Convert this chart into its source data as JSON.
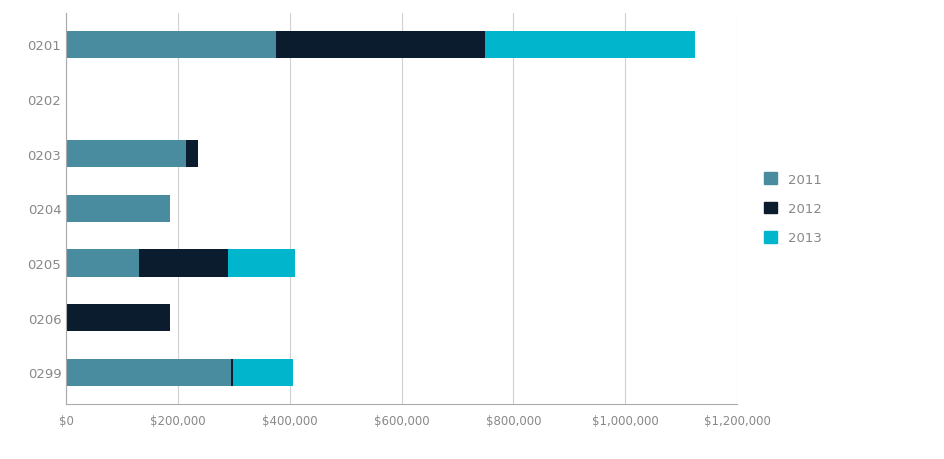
{
  "categories": [
    "0201",
    "0202",
    "0203",
    "0204",
    "0205",
    "0206",
    "0299"
  ],
  "series": {
    "2011": [
      375000,
      0,
      215000,
      185000,
      130000,
      0,
      295000
    ],
    "2012": [
      375000,
      0,
      20000,
      0,
      160000,
      185000,
      3000
    ],
    "2013": [
      375000,
      0,
      0,
      0,
      120000,
      0,
      108000
    ]
  },
  "colors": {
    "2011": "#4a8c9f",
    "2012": "#0b1c2e",
    "2013": "#00b5cc"
  },
  "xlim": [
    0,
    1200000
  ],
  "xtick_values": [
    0,
    200000,
    400000,
    600000,
    800000,
    1000000,
    1200000
  ],
  "xtick_labels": [
    "$0",
    "$200,000",
    "$400,000",
    "$600,000",
    "$800,000",
    "$1,000,000",
    "$1,200,000"
  ],
  "legend_labels": [
    "2011",
    "2012",
    "2013"
  ],
  "background_color": "#ffffff",
  "grid_color": "#d0d0d0",
  "bar_height": 0.5,
  "label_fontsize": 9.5,
  "tick_fontsize": 8.5,
  "legend_fontsize": 9.5,
  "tick_color": "#888888",
  "spine_color": "#aaaaaa"
}
